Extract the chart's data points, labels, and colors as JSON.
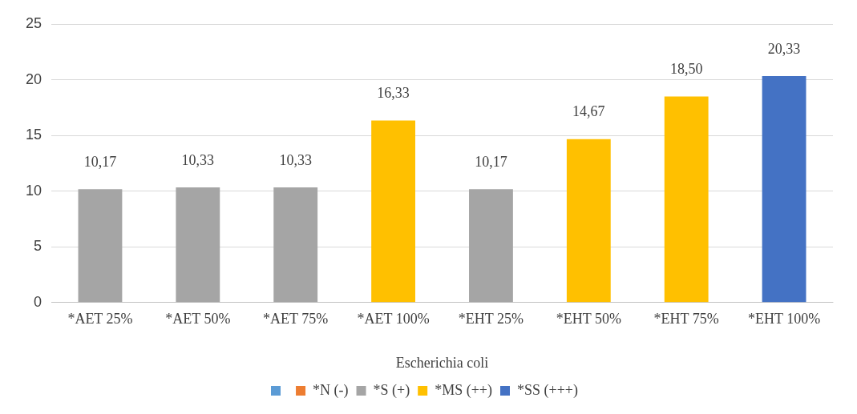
{
  "chart_data": {
    "type": "bar",
    "stacked": true,
    "xlabel": "Escherichia coli",
    "categories": [
      "*AET 25%",
      "*AET 50%",
      "*AET 75%",
      "*AET 100%",
      "*EHT 25%",
      "*EHT 50%",
      "*EHT 75%",
      "*EHT 100%"
    ],
    "series": [
      {
        "color": "#5b9bd5",
        "values": [
          null,
          null,
          null,
          null,
          null,
          null,
          null,
          null
        ]
      },
      {
        "name": "*N (-)",
        "color": "#ed7d31",
        "values": [
          null,
          null,
          null,
          null,
          null,
          null,
          null,
          null
        ]
      },
      {
        "name": "*S (+)",
        "color": "#a5a5a5",
        "values": [
          10.17,
          10.33,
          10.33,
          null,
          10.17,
          null,
          null,
          null
        ],
        "value_labels": [
          "10,17",
          "10,33",
          "10,33",
          null,
          "10,17",
          null,
          null,
          null
        ]
      },
      {
        "name": "*MS (++)",
        "color": "#ffc000",
        "values": [
          null,
          null,
          null,
          16.33,
          null,
          14.67,
          18.5,
          null
        ],
        "value_labels": [
          null,
          null,
          null,
          "16,33",
          null,
          "14,67",
          "18,50",
          null
        ]
      },
      {
        "name": "*SS (+++)",
        "color": "#4472c4",
        "values": [
          null,
          null,
          null,
          null,
          null,
          null,
          null,
          20.33
        ],
        "value_labels": [
          null,
          null,
          null,
          null,
          null,
          null,
          null,
          "20,33"
        ]
      }
    ],
    "ylim": [
      0,
      25
    ],
    "yticks": [
      0,
      5,
      10,
      15,
      20,
      25
    ],
    "grid": "y",
    "legend": "bottom"
  }
}
